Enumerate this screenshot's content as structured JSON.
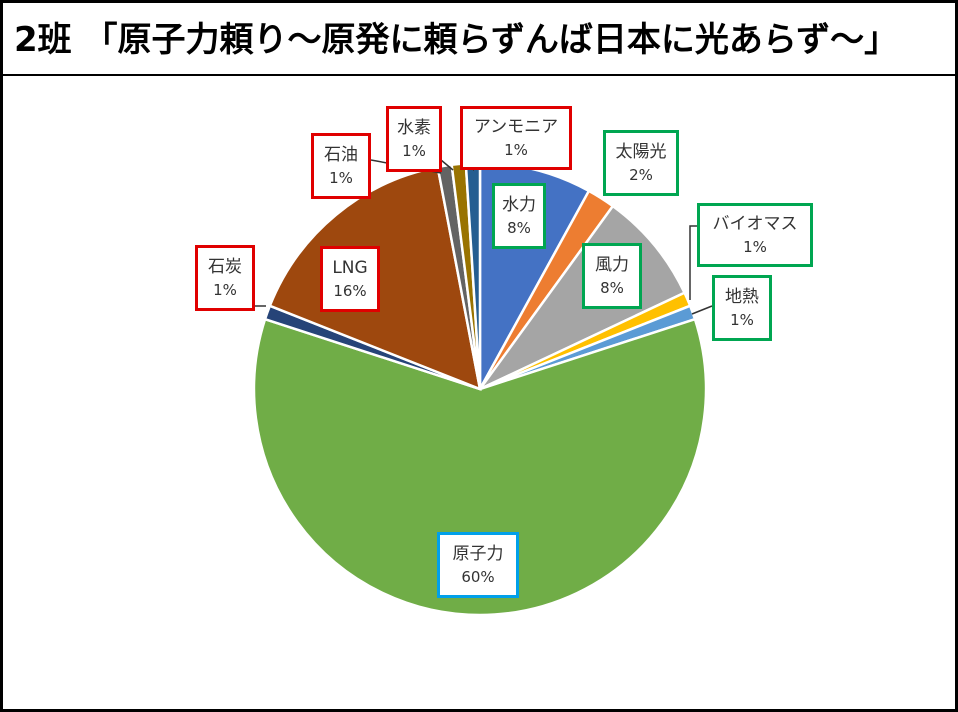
{
  "page": {
    "title": "2班 「原子力頼り～原発に頼らずんば日本に光あらず～」"
  },
  "chart_data": {
    "type": "pie",
    "title": "",
    "start_angle_deg": 0,
    "direction": "clockwise",
    "slices": [
      {
        "label": "水力",
        "value": 8,
        "display": "8%",
        "color": "#4472c4",
        "border": "#00a651"
      },
      {
        "label": "太陽光",
        "value": 2,
        "display": "2%",
        "color": "#ed7d31",
        "border": "#00a651"
      },
      {
        "label": "風力",
        "value": 8,
        "display": "8%",
        "color": "#a5a5a5",
        "border": "#00a651"
      },
      {
        "label": "バイオマス",
        "value": 1,
        "display": "1%",
        "color": "#ffc000",
        "border": "#00a651"
      },
      {
        "label": "地熱",
        "value": 1,
        "display": "1%",
        "color": "#5b9bd5",
        "border": "#00a651"
      },
      {
        "label": "原子力",
        "value": 60,
        "display": "60%",
        "color": "#70ad47",
        "border": "#00a0e9"
      },
      {
        "label": "石炭",
        "value": 1,
        "display": "1%",
        "color": "#264478",
        "border": "#e00000"
      },
      {
        "label": "LNG",
        "value": 16,
        "display": "16%",
        "color": "#9e480e",
        "border": "#e00000"
      },
      {
        "label": "石油",
        "value": 1,
        "display": "1%",
        "color": "#636363",
        "border": "#e00000"
      },
      {
        "label": "水素",
        "value": 1,
        "display": "1%",
        "color": "#997300",
        "border": "#e00000"
      },
      {
        "label": "アンモニア",
        "value": 1,
        "display": "1%",
        "color": "#255e91",
        "border": "#e00000"
      }
    ]
  }
}
